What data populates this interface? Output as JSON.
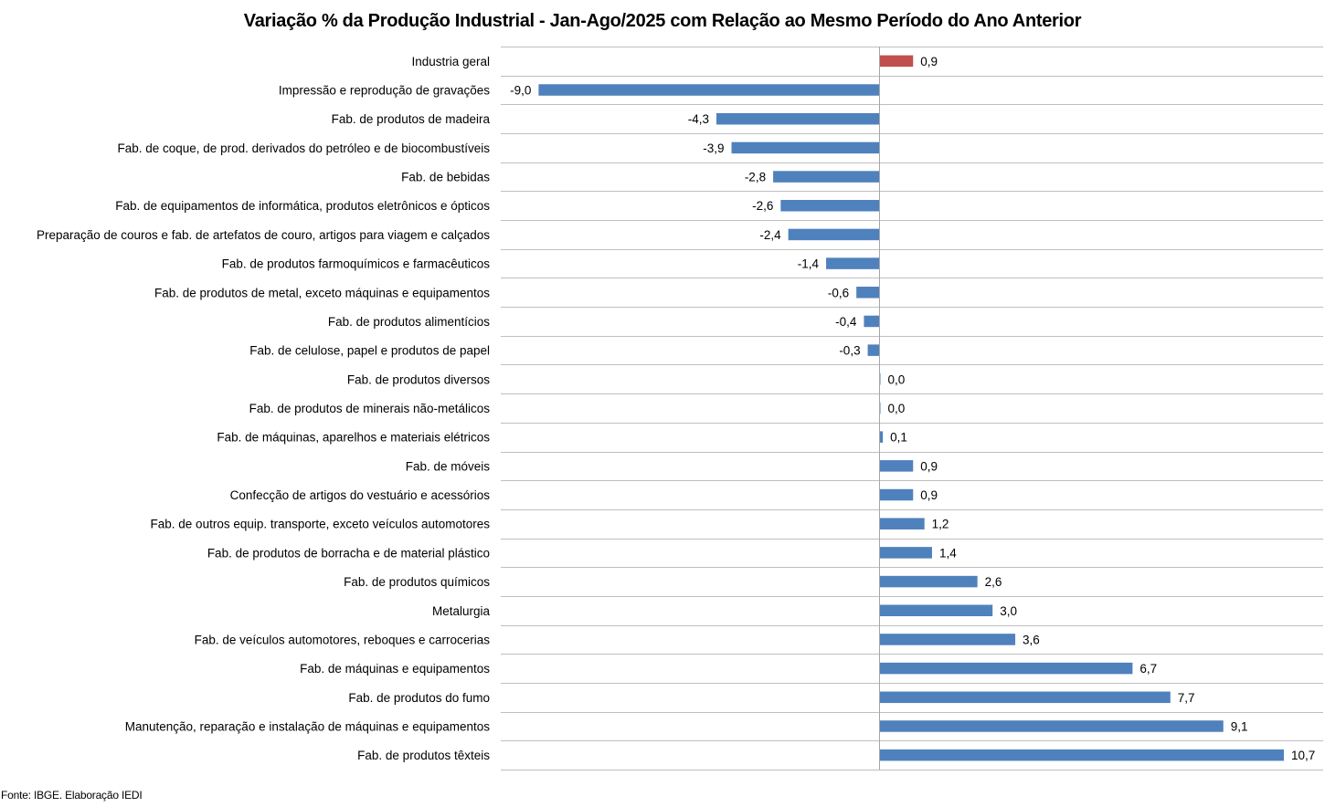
{
  "chart_data": {
    "type": "bar",
    "orientation": "horizontal",
    "title": "Variação % da Produção Industrial - Jan-Ago/2025 com Relação ao Mesmo Período do Ano Anterior",
    "xlabel": "",
    "ylabel": "",
    "xlim": [
      -9.0,
      11.8
    ],
    "grid": true,
    "legend": "none",
    "decimal_separator": ",",
    "colors": {
      "highlight": "#C0504D",
      "default": "#4F81BD",
      "grid": "#BFBFBF",
      "axis": "#A6A6A6"
    },
    "categories": [
      "Industria geral",
      "Impressão e reprodução de gravações",
      "Fab. de produtos de madeira",
      "Fab. de coque, de prod. derivados do petróleo e de biocombustíveis",
      "Fab. de bebidas",
      "Fab. de equipamentos de informática, produtos eletrônicos e ópticos",
      "Preparação de couros e fab. de artefatos de couro, artigos para viagem e calçados",
      "Fab. de produtos farmoquímicos e farmacêuticos",
      "Fab. de produtos de metal, exceto máquinas e equipamentos",
      "Fab. de produtos alimentícios",
      "Fab. de celulose, papel e produtos de papel",
      "Fab. de produtos diversos",
      "Fab. de produtos de minerais não-metálicos",
      "Fab. de máquinas, aparelhos e materiais elétricos",
      "Fab. de móveis",
      "Confecção de artigos do vestuário e acessórios",
      "Fab. de outros equip. transporte, exceto veículos automotores",
      "Fab. de produtos de borracha e de material plástico",
      "Fab. de produtos químicos",
      "Metalurgia",
      "Fab. de veículos automotores, reboques e carrocerias",
      "Fab. de máquinas e equipamentos",
      "Fab. de produtos do fumo",
      "Manutenção, reparação e instalação de máquinas e equipamentos",
      "Fab. de produtos têxteis"
    ],
    "values": [
      0.9,
      -9.0,
      -4.3,
      -3.9,
      -2.8,
      -2.6,
      -2.4,
      -1.4,
      -0.6,
      -0.4,
      -0.3,
      0.02,
      0.02,
      0.1,
      0.9,
      0.9,
      1.2,
      1.4,
      2.6,
      3.0,
      3.6,
      6.7,
      7.7,
      9.1,
      10.7
    ],
    "data_labels": [
      "0,9",
      "-9,0",
      "-4,3",
      "-3,9",
      "-2,8",
      "-2,6",
      "-2,4",
      "-1,4",
      "-0,6",
      "-0,4",
      "-0,3",
      "0,0",
      "0,0",
      "0,1",
      "0,9",
      "0,9",
      "1,2",
      "1,4",
      "2,6",
      "3,0",
      "3,6",
      "6,7",
      "7,7",
      "9,1",
      "10,7"
    ],
    "highlight_index": 0
  },
  "source": "Fonte: IBGE. Elaboração IEDI"
}
